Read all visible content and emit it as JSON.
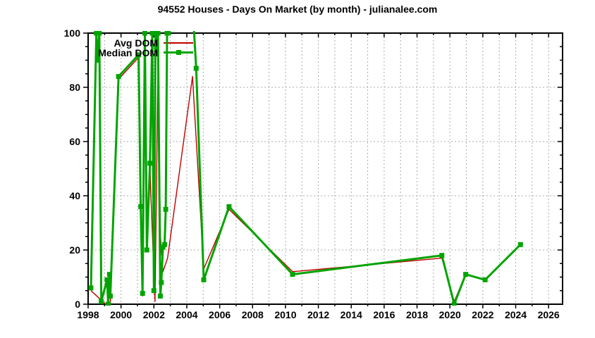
{
  "title": "94552 Houses - Days On Market (by month) - julianalee.com",
  "legend": {
    "items": [
      {
        "label": "Avg DOM",
        "color": "#c00000",
        "marker": false
      },
      {
        "label": "Median DOM",
        "color": "#00a400",
        "marker": true
      }
    ]
  },
  "colors": {
    "background": "#ffffff",
    "axis": "#000000",
    "grid": "#ababab",
    "avg_line": "#c00000",
    "median_line": "#00a400"
  },
  "chart_data": {
    "type": "line",
    "title": "94552 Houses - Days On Market (by month) - julianalee.com",
    "xlabel": "",
    "ylabel": "",
    "xlim": [
      1998,
      2026.85
    ],
    "ylim": [
      0,
      100
    ],
    "grid": true,
    "legend_position": "top-left-inside",
    "x_tick_labels": [
      "1998",
      "2000",
      "2002",
      "2004",
      "2006",
      "2008",
      "2010",
      "2012",
      "2014",
      "2016",
      "2018",
      "2020",
      "2022",
      "2024",
      "2026"
    ],
    "x_major_ticks": [
      1998,
      2000,
      2002,
      2004,
      2006,
      2008,
      2010,
      2012,
      2014,
      2016,
      2018,
      2020,
      2022,
      2024,
      2026
    ],
    "x_minor_ticks": [
      1999,
      2001,
      2003,
      2005,
      2007,
      2009,
      2011,
      2013,
      2015,
      2017,
      2019,
      2021,
      2023,
      2025
    ],
    "y_tick_labels": [
      "0",
      "20",
      "40",
      "60",
      "80",
      "100"
    ],
    "y_major_ticks": [
      0,
      20,
      40,
      60,
      80,
      100
    ],
    "y_minor_step": 5,
    "series": [
      {
        "name": "Avg DOM",
        "color": "#c00000",
        "line_width": 1.4,
        "markers": false,
        "points": [
          [
            1998.17,
            5
          ],
          [
            1999.07,
            0
          ],
          [
            1999.35,
            0
          ],
          [
            1999.85,
            83
          ],
          [
            2001.07,
            91
          ],
          [
            2001.2,
            34
          ],
          [
            2001.31,
            3
          ],
          [
            2001.45,
            97
          ],
          [
            2001.57,
            21
          ],
          [
            2001.76,
            52
          ],
          [
            2001.81,
            41
          ],
          [
            2002.07,
            1
          ],
          [
            2002.25,
            88
          ],
          [
            2002.4,
            25
          ],
          [
            2002.55,
            12
          ],
          [
            2002.83,
            17
          ],
          [
            2004.35,
            84
          ],
          [
            2005.03,
            13
          ],
          [
            2006.57,
            35
          ],
          [
            2010.43,
            12
          ],
          [
            2019.51,
            17
          ],
          [
            2020.26,
            1
          ],
          [
            2020.96,
            11
          ],
          [
            2022.14,
            9
          ],
          [
            2024.29,
            22
          ]
        ]
      },
      {
        "name": "Median DOM",
        "color": "#00a400",
        "line_width": 3,
        "markers": true,
        "points": [
          [
            1998.17,
            6
          ],
          [
            1998.5,
            100
          ],
          [
            1998.58,
            90
          ],
          [
            1998.68,
            100
          ],
          [
            1998.8,
            1
          ],
          [
            1999.15,
            9
          ],
          [
            1999.22,
            0
          ],
          [
            1999.3,
            11
          ],
          [
            1999.35,
            3
          ],
          [
            1999.85,
            84
          ],
          [
            2001.07,
            92
          ],
          [
            2001.2,
            36
          ],
          [
            2001.31,
            4
          ],
          [
            2001.45,
            100
          ],
          [
            2001.57,
            20
          ],
          [
            2001.76,
            52
          ],
          [
            2001.9,
            100
          ],
          [
            2002.0,
            5
          ],
          [
            2002.1,
            100
          ],
          [
            2002.16,
            94
          ],
          [
            2002.25,
            100
          ],
          [
            2002.39,
            3
          ],
          [
            2002.45,
            8
          ],
          [
            2002.55,
            21
          ],
          [
            2002.65,
            22
          ],
          [
            2002.72,
            35
          ],
          [
            2002.8,
            100
          ],
          [
            2002.88,
            100
          ],
          [
            2003.1,
            115
          ],
          [
            2004.3,
            115
          ],
          [
            2004.57,
            87
          ],
          [
            2005.03,
            9
          ],
          [
            2006.57,
            36
          ],
          [
            2010.43,
            11
          ],
          [
            2019.51,
            18
          ],
          [
            2020.26,
            0
          ],
          [
            2020.96,
            11
          ],
          [
            2022.14,
            9
          ],
          [
            2024.29,
            22
          ]
        ]
      }
    ]
  }
}
